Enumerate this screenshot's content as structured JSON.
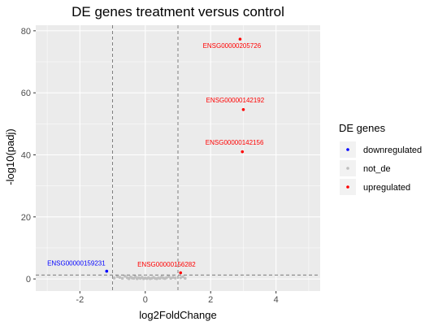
{
  "chart_data": {
    "type": "scatter",
    "title": "DE genes treatment versus control",
    "xlabel": "log2FoldChange",
    "ylabel": "-log10(padj)",
    "xlim": [
      -3.35,
      5.35
    ],
    "ylim": [
      -3.9,
      81.8
    ],
    "x_ticks": [
      -2,
      0,
      2,
      4
    ],
    "y_ticks": [
      0,
      20,
      40,
      60,
      80
    ],
    "grid": true,
    "background": "#ebebeb",
    "vlines": [
      -1,
      1
    ],
    "hline": 1.3,
    "legend_position": "right",
    "legend": {
      "title": "DE genes",
      "entries": [
        {
          "label": "downregulated",
          "color": "#0000ff"
        },
        {
          "label": "not_de",
          "color": "#bebebe"
        },
        {
          "label": "upregulated",
          "color": "#ff0000"
        }
      ]
    },
    "series": [
      {
        "name": "downregulated",
        "color": "#0000ff",
        "points": [
          [
            -1.18,
            2.5
          ]
        ]
      },
      {
        "name": "not_de",
        "color": "#bebebe",
        "points": [
          [
            -0.95,
            0.3
          ],
          [
            -0.85,
            0.8
          ],
          [
            -0.78,
            0.5
          ],
          [
            -0.7,
            0.2
          ],
          [
            -0.62,
            0.9
          ],
          [
            -0.55,
            0.4
          ],
          [
            -0.5,
            0.1
          ],
          [
            -0.45,
            0.6
          ],
          [
            -0.4,
            0.3
          ],
          [
            -0.35,
            0.2
          ],
          [
            -0.3,
            0.7
          ],
          [
            -0.25,
            0.1
          ],
          [
            -0.2,
            0.4
          ],
          [
            -0.15,
            0.2
          ],
          [
            -0.1,
            0.5
          ],
          [
            -0.05,
            0.1
          ],
          [
            0.0,
            0.3
          ],
          [
            0.05,
            0.15
          ],
          [
            0.1,
            0.4
          ],
          [
            0.15,
            0.1
          ],
          [
            0.2,
            0.25
          ],
          [
            0.25,
            0.5
          ],
          [
            0.3,
            0.2
          ],
          [
            0.35,
            0.1
          ],
          [
            0.4,
            0.35
          ],
          [
            0.45,
            0.2
          ],
          [
            0.5,
            0.6
          ],
          [
            0.55,
            0.3
          ],
          [
            0.6,
            0.15
          ],
          [
            0.65,
            0.4
          ],
          [
            0.72,
            0.8
          ],
          [
            0.78,
            0.2
          ],
          [
            0.85,
            0.5
          ],
          [
            0.92,
            0.3
          ],
          [
            1.08,
            0.4
          ],
          [
            1.15,
            0.7
          ],
          [
            1.22,
            0.2
          ]
        ]
      },
      {
        "name": "upregulated",
        "color": "#ff0000",
        "points": [
          [
            2.9,
            77.3
          ],
          [
            3.0,
            54.6
          ],
          [
            2.97,
            41.0
          ],
          [
            1.08,
            2.0
          ]
        ]
      }
    ],
    "annotations": [
      {
        "text": "ENSG00000205726",
        "x": 2.65,
        "y": 74.5,
        "color": "#ff0000"
      },
      {
        "text": "ENSG00000142192",
        "x": 2.75,
        "y": 56.9,
        "color": "#ff0000"
      },
      {
        "text": "ENSG00000142156",
        "x": 2.73,
        "y": 43.3,
        "color": "#ff0000"
      },
      {
        "text": "ENSG00000159231",
        "x": -2.11,
        "y": 4.4,
        "color": "#0000ff"
      },
      {
        "text": "ENSG00000156282",
        "x": 0.65,
        "y": 3.9,
        "color": "#ff0000"
      }
    ]
  }
}
